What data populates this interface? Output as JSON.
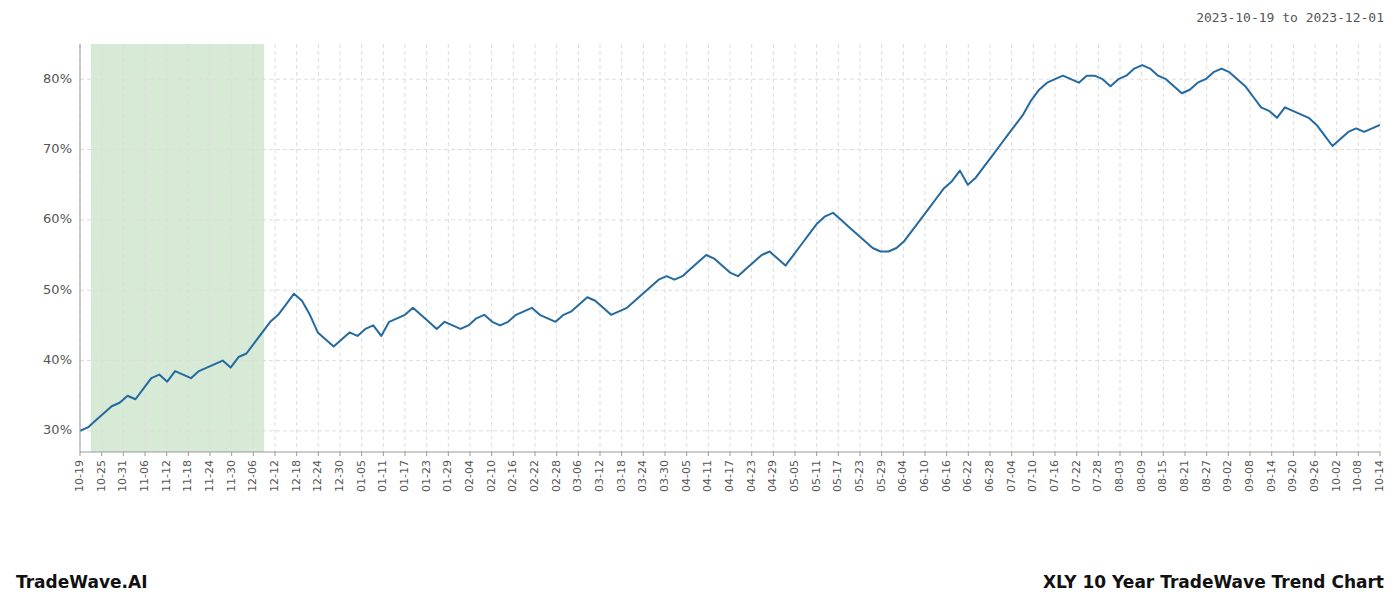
{
  "chart_data": {
    "type": "line",
    "title": "XLY 10 Year TradeWave Trend Chart",
    "subtitle": "2023-10-19 to 2023-12-01",
    "annotations": [
      "TradeWave.AI"
    ],
    "color": "#2469a0",
    "grid": true,
    "xlim": [
      0,
      60
    ],
    "ylim": [
      27,
      85
    ],
    "yticks": [
      {
        "value": 30,
        "label": "30%"
      },
      {
        "value": 40,
        "label": "40%"
      },
      {
        "value": 50,
        "label": "50%"
      },
      {
        "value": 60,
        "label": "60%"
      },
      {
        "value": 70,
        "label": "70%"
      },
      {
        "value": 80,
        "label": "80%"
      }
    ],
    "xticks": [
      {
        "value": 0,
        "label": "10-19"
      },
      {
        "value": 1,
        "label": "10-25"
      },
      {
        "value": 2,
        "label": "10-31"
      },
      {
        "value": 3,
        "label": "11-06"
      },
      {
        "value": 4,
        "label": "11-12"
      },
      {
        "value": 5,
        "label": "11-18"
      },
      {
        "value": 6,
        "label": "11-24"
      },
      {
        "value": 7,
        "label": "11-30"
      },
      {
        "value": 8,
        "label": "12-06"
      },
      {
        "value": 9,
        "label": "12-12"
      },
      {
        "value": 10,
        "label": "12-18"
      },
      {
        "value": 11,
        "label": "12-24"
      },
      {
        "value": 12,
        "label": "12-30"
      },
      {
        "value": 13,
        "label": "01-05"
      },
      {
        "value": 14,
        "label": "01-11"
      },
      {
        "value": 15,
        "label": "01-17"
      },
      {
        "value": 16,
        "label": "01-23"
      },
      {
        "value": 17,
        "label": "01-29"
      },
      {
        "value": 18,
        "label": "02-04"
      },
      {
        "value": 19,
        "label": "02-10"
      },
      {
        "value": 20,
        "label": "02-16"
      },
      {
        "value": 21,
        "label": "02-22"
      },
      {
        "value": 22,
        "label": "02-28"
      },
      {
        "value": 23,
        "label": "03-06"
      },
      {
        "value": 24,
        "label": "03-12"
      },
      {
        "value": 25,
        "label": "03-18"
      },
      {
        "value": 26,
        "label": "03-24"
      },
      {
        "value": 27,
        "label": "03-30"
      },
      {
        "value": 28,
        "label": "04-05"
      },
      {
        "value": 29,
        "label": "04-11"
      },
      {
        "value": 30,
        "label": "04-17"
      },
      {
        "value": 31,
        "label": "04-23"
      },
      {
        "value": 32,
        "label": "04-29"
      },
      {
        "value": 33,
        "label": "05-05"
      },
      {
        "value": 34,
        "label": "05-11"
      },
      {
        "value": 35,
        "label": "05-17"
      },
      {
        "value": 36,
        "label": "05-23"
      },
      {
        "value": 37,
        "label": "05-29"
      },
      {
        "value": 38,
        "label": "06-04"
      },
      {
        "value": 39,
        "label": "06-10"
      },
      {
        "value": 40,
        "label": "06-16"
      },
      {
        "value": 41,
        "label": "06-22"
      },
      {
        "value": 42,
        "label": "06-28"
      },
      {
        "value": 43,
        "label": "07-04"
      },
      {
        "value": 44,
        "label": "07-10"
      },
      {
        "value": 45,
        "label": "07-16"
      },
      {
        "value": 46,
        "label": "07-22"
      },
      {
        "value": 47,
        "label": "07-28"
      },
      {
        "value": 48,
        "label": "08-03"
      },
      {
        "value": 49,
        "label": "08-09"
      },
      {
        "value": 50,
        "label": "08-15"
      },
      {
        "value": 51,
        "label": "08-21"
      },
      {
        "value": 52,
        "label": "08-27"
      },
      {
        "value": 53,
        "label": "09-02"
      },
      {
        "value": 54,
        "label": "09-08"
      },
      {
        "value": 55,
        "label": "09-14"
      },
      {
        "value": 56,
        "label": "09-20"
      },
      {
        "value": 57,
        "label": "09-26"
      },
      {
        "value": 58,
        "label": "10-02"
      },
      {
        "value": 59,
        "label": "10-08"
      },
      {
        "value": 60,
        "label": "10-14"
      }
    ],
    "spans": [
      {
        "x0": 0.5,
        "x1": 8.5,
        "color": "#d6ead6"
      }
    ],
    "x": [
      0,
      0.365853658536585,
      0.73170731707317,
      1.097560975609756,
      1.463414634146341,
      1.829268292682926,
      2.195121951219512,
      2.560975609756097,
      2.926829268292682,
      3.292682926829268,
      3.658536585365853,
      4.024390243902439,
      4.390243902439024,
      4.756097560975609,
      5.121951219512195,
      5.48780487804878,
      5.853658536585365,
      6.219512195121951,
      6.585365853658536,
      6.951219512195121,
      7.317073170731707,
      7.682926829268292,
      8.048780487804878,
      8.414634146341463,
      8.780487804878048,
      9.146341463414634,
      9.512195121951219,
      9.878048780487804,
      10.24390243902439,
      10.609756097560975,
      10.97560975609756,
      11.341463414634147,
      11.707317073170731,
      12.073170731707316,
      12.439024390243903,
      12.804878048780488,
      13.170731707317072,
      13.536585365853657,
      13.902439024390244,
      14.268292682926829,
      14.634146341463413,
      15,
      15.365853658536585,
      15.73170731707317,
      16.097560975609756,
      16.463414634146343,
      16.829268292682926,
      17.195121951219512,
      17.560975609756095,
      17.926829268292682,
      18.29268292682927,
      18.65853658536585,
      19.024390243902438,
      19.390243902439025,
      19.756097560975608,
      20.121951219512194,
      20.48780487804878,
      20.853658536585364,
      21.21951219512195,
      21.585365853658537,
      21.95121951219512,
      22.317073170731707,
      22.682926829268293,
      23.048780487804876,
      23.414634146341463,
      23.78048780487805,
      24.146341463414632,
      24.51219512195122,
      24.878048780487806,
      25.24390243902439,
      25.609756097560975,
      25.97560975609756,
      26.341463414634145,
      26.70731707317073,
      27.073170731707318,
      27.4390243902439,
      27.804878048780488,
      28.170731707317074,
      28.536585365853657,
      28.902439024390244,
      29.26829268292683,
      29.634146341463413,
      30,
      30.365853658536587,
      30.73170731707317,
      31.097560975609756,
      31.463414634146343,
      31.829268292682926,
      32.19512195121951,
      32.5609756097561,
      32.926829268292686,
      33.292682926829265,
      33.65853658536585,
      34.02439024390244,
      34.390243902439025,
      34.75609756097561,
      35.1219512195122,
      35.48780487804878,
      35.853658536585364,
      36.21951219512195,
      36.58536585365854,
      36.951219512195124,
      37.31707317073171,
      37.68292682926829,
      38.048780487804876,
      38.41463414634146,
      38.78048780487805,
      39.146341463414636,
      39.512195121951216,
      39.8780487804878,
      40.24390243902439,
      40.609756097560975,
      40.97560975609756,
      41.34146341463415,
      41.70731707317073,
      42.073170731707314,
      42.4390243902439,
      42.80487804878049,
      43.170731707317074,
      43.53658536585366,
      43.90243902439024,
      44.26829268292683,
      44.63414634146341,
      45,
      45.36585365853659,
      45.73170731707317,
      46.09756097560975,
      46.46341463414634,
      46.829268292682926,
      47.19512195121951,
      47.5609756097561,
      47.926829268292686,
      48.292682926829265,
      48.65853658536585,
      49.02439024390244,
      49.390243902439025,
      49.75609756097561,
      50.1219512195122,
      50.48780487804878,
      50.853658536585364,
      51.21951219512195,
      51.58536585365854,
      51.951219512195124,
      52.31707317073171,
      52.68292682926829,
      53.048780487804876,
      53.41463414634146,
      53.78048780487805,
      54.146341463414636,
      54.512195121951216,
      54.8780487804878,
      55.24390243902439,
      55.609756097560975,
      55.97560975609756,
      56.34146341463415,
      56.70731707317073,
      57.073170731707314,
      57.4390243902439,
      57.80487804878049,
      58.170731707317074,
      58.53658536585366,
      58.90243902439024,
      59.26829268292683,
      59.63414634146341,
      60
    ],
    "values": [
      30.0,
      30.5,
      31.5,
      32.5,
      33.5,
      34.0,
      35.0,
      34.5,
      36.0,
      37.5,
      38.0,
      37.0,
      38.5,
      38.0,
      37.5,
      38.5,
      39.0,
      39.5,
      40.0,
      39.0,
      40.5,
      41.0,
      42.5,
      44.0,
      45.5,
      46.5,
      48.0,
      49.5,
      48.5,
      46.5,
      44.0,
      43.0,
      42.0,
      43.0,
      44.0,
      43.5,
      44.5,
      45.0,
      43.5,
      45.5,
      46.0,
      46.5,
      47.5,
      46.5,
      45.5,
      44.5,
      45.5,
      45.0,
      44.5,
      45.0,
      46.0,
      46.5,
      45.5,
      45.0,
      45.5,
      46.5,
      47.0,
      47.5,
      46.5,
      46.0,
      45.5,
      46.5,
      47.0,
      48.0,
      49.0,
      48.5,
      47.5,
      46.5,
      47.0,
      47.5,
      48.5,
      49.5,
      50.5,
      51.5,
      52.0,
      51.5,
      52.0,
      53.0,
      54.0,
      55.0,
      54.5,
      53.5,
      52.5,
      52.0,
      53.0,
      54.0,
      55.0,
      55.5,
      54.5,
      53.5,
      55.0,
      56.5,
      58.0,
      59.5,
      60.5,
      61.0,
      60.0,
      59.0,
      58.0,
      57.0,
      56.0,
      55.5,
      55.5,
      56.0,
      57.0,
      58.5,
      60.0,
      61.5,
      63.0,
      64.5,
      65.5,
      67.0,
      65.0,
      66.0,
      67.5,
      69.0,
      70.5,
      72.0,
      73.5,
      75.0,
      77.0,
      78.5,
      79.5,
      80.0,
      80.5,
      80.0,
      79.5,
      80.5,
      80.5,
      80.0,
      79.0,
      80.0,
      80.5,
      81.5,
      82.0,
      81.5,
      80.5,
      80.0,
      79.0,
      78.0,
      78.5,
      79.5,
      80.0,
      81.0,
      81.5,
      81.0,
      80.0,
      79.0,
      77.5,
      76.0,
      75.5,
      74.5,
      76.0,
      75.5,
      75.0,
      74.5,
      73.5,
      72.0,
      70.5,
      71.5,
      72.5,
      73.0,
      72.5,
      73.0,
      73.5
    ]
  }
}
